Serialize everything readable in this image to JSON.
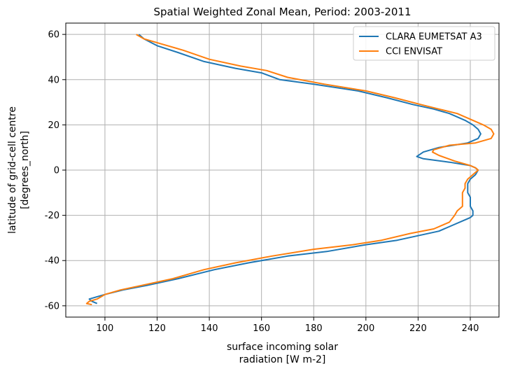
{
  "chart_data": {
    "type": "line",
    "title": "Spatial Weighted Zonal Mean, Period: 2003-2011",
    "xlabel": [
      "surface incoming solar",
      "radiation [W m-2]"
    ],
    "ylabel": [
      "latitude of grid-cell centre",
      "[degrees_north]"
    ],
    "xlim": [
      85,
      251
    ],
    "ylim": [
      -65,
      65
    ],
    "xticks": [
      100,
      120,
      140,
      160,
      180,
      200,
      220,
      240
    ],
    "yticks": [
      -60,
      -40,
      -20,
      0,
      20,
      40,
      60
    ],
    "grid": true,
    "legend_position": "top-right",
    "series": [
      {
        "name": "CLARA EUMETSAT A3",
        "color": "#1f77b4",
        "points": [
          [
            113,
            60
          ],
          [
            115,
            58
          ],
          [
            120,
            55
          ],
          [
            128,
            52
          ],
          [
            138,
            48
          ],
          [
            150,
            45
          ],
          [
            160,
            43
          ],
          [
            167,
            40
          ],
          [
            180,
            38
          ],
          [
            197,
            35
          ],
          [
            208,
            32
          ],
          [
            218,
            29
          ],
          [
            226,
            27
          ],
          [
            232,
            25
          ],
          [
            238,
            22
          ],
          [
            241,
            20
          ],
          [
            243,
            18
          ],
          [
            244,
            16
          ],
          [
            243,
            14
          ],
          [
            239,
            12
          ],
          [
            228,
            10
          ],
          [
            222,
            8
          ],
          [
            219.5,
            6
          ],
          [
            222,
            5
          ],
          [
            232,
            3.5
          ],
          [
            240,
            2
          ],
          [
            242,
            1
          ],
          [
            243,
            0
          ],
          [
            242,
            -2
          ],
          [
            240,
            -4
          ],
          [
            239,
            -6
          ],
          [
            239,
            -8
          ],
          [
            239,
            -10
          ],
          [
            240,
            -12
          ],
          [
            240,
            -14
          ],
          [
            240,
            -16
          ],
          [
            241,
            -18
          ],
          [
            241,
            -20
          ],
          [
            240,
            -21
          ],
          [
            238,
            -22
          ],
          [
            234,
            -24
          ],
          [
            228,
            -27
          ],
          [
            220,
            -29
          ],
          [
            212,
            -31
          ],
          [
            200,
            -33
          ],
          [
            185,
            -36
          ],
          [
            170,
            -38
          ],
          [
            155,
            -41
          ],
          [
            142,
            -44
          ],
          [
            128,
            -48
          ],
          [
            116,
            -51
          ],
          [
            107,
            -53
          ],
          [
            100,
            -55
          ],
          [
            97,
            -56
          ],
          [
            94,
            -57
          ],
          [
            95,
            -58
          ],
          [
            97,
            -59
          ]
        ]
      },
      {
        "name": "CCI ENVISAT",
        "color": "#ff7f0e",
        "points": [
          [
            112,
            60
          ],
          [
            115,
            58
          ],
          [
            121,
            56
          ],
          [
            130,
            53
          ],
          [
            140,
            49
          ],
          [
            152,
            46
          ],
          [
            162,
            44
          ],
          [
            170,
            41
          ],
          [
            184,
            38
          ],
          [
            200,
            35
          ],
          [
            211,
            32
          ],
          [
            221,
            29
          ],
          [
            228,
            27
          ],
          [
            235,
            25
          ],
          [
            241,
            22
          ],
          [
            245,
            20
          ],
          [
            248,
            18
          ],
          [
            249,
            16
          ],
          [
            248,
            14
          ],
          [
            242,
            12
          ],
          [
            232,
            11
          ],
          [
            226,
            9
          ],
          [
            225.5,
            8
          ],
          [
            228,
            6.5
          ],
          [
            234,
            4
          ],
          [
            240,
            2
          ],
          [
            242,
            1
          ],
          [
            243,
            0
          ],
          [
            241,
            -2
          ],
          [
            239,
            -4
          ],
          [
            238,
            -6
          ],
          [
            238,
            -8
          ],
          [
            237,
            -10
          ],
          [
            237,
            -12
          ],
          [
            237,
            -14
          ],
          [
            237,
            -16
          ],
          [
            235,
            -18
          ],
          [
            234,
            -20
          ],
          [
            232,
            -23
          ],
          [
            226,
            -26
          ],
          [
            217,
            -28
          ],
          [
            206,
            -31
          ],
          [
            195,
            -33
          ],
          [
            180,
            -35
          ],
          [
            164,
            -38
          ],
          [
            150,
            -41
          ],
          [
            138,
            -44
          ],
          [
            126,
            -48
          ],
          [
            114,
            -51
          ],
          [
            106,
            -53
          ],
          [
            100,
            -55
          ],
          [
            97,
            -57
          ],
          [
            94,
            -58
          ],
          [
            93,
            -59
          ],
          [
            95,
            -59.5
          ]
        ]
      }
    ]
  }
}
